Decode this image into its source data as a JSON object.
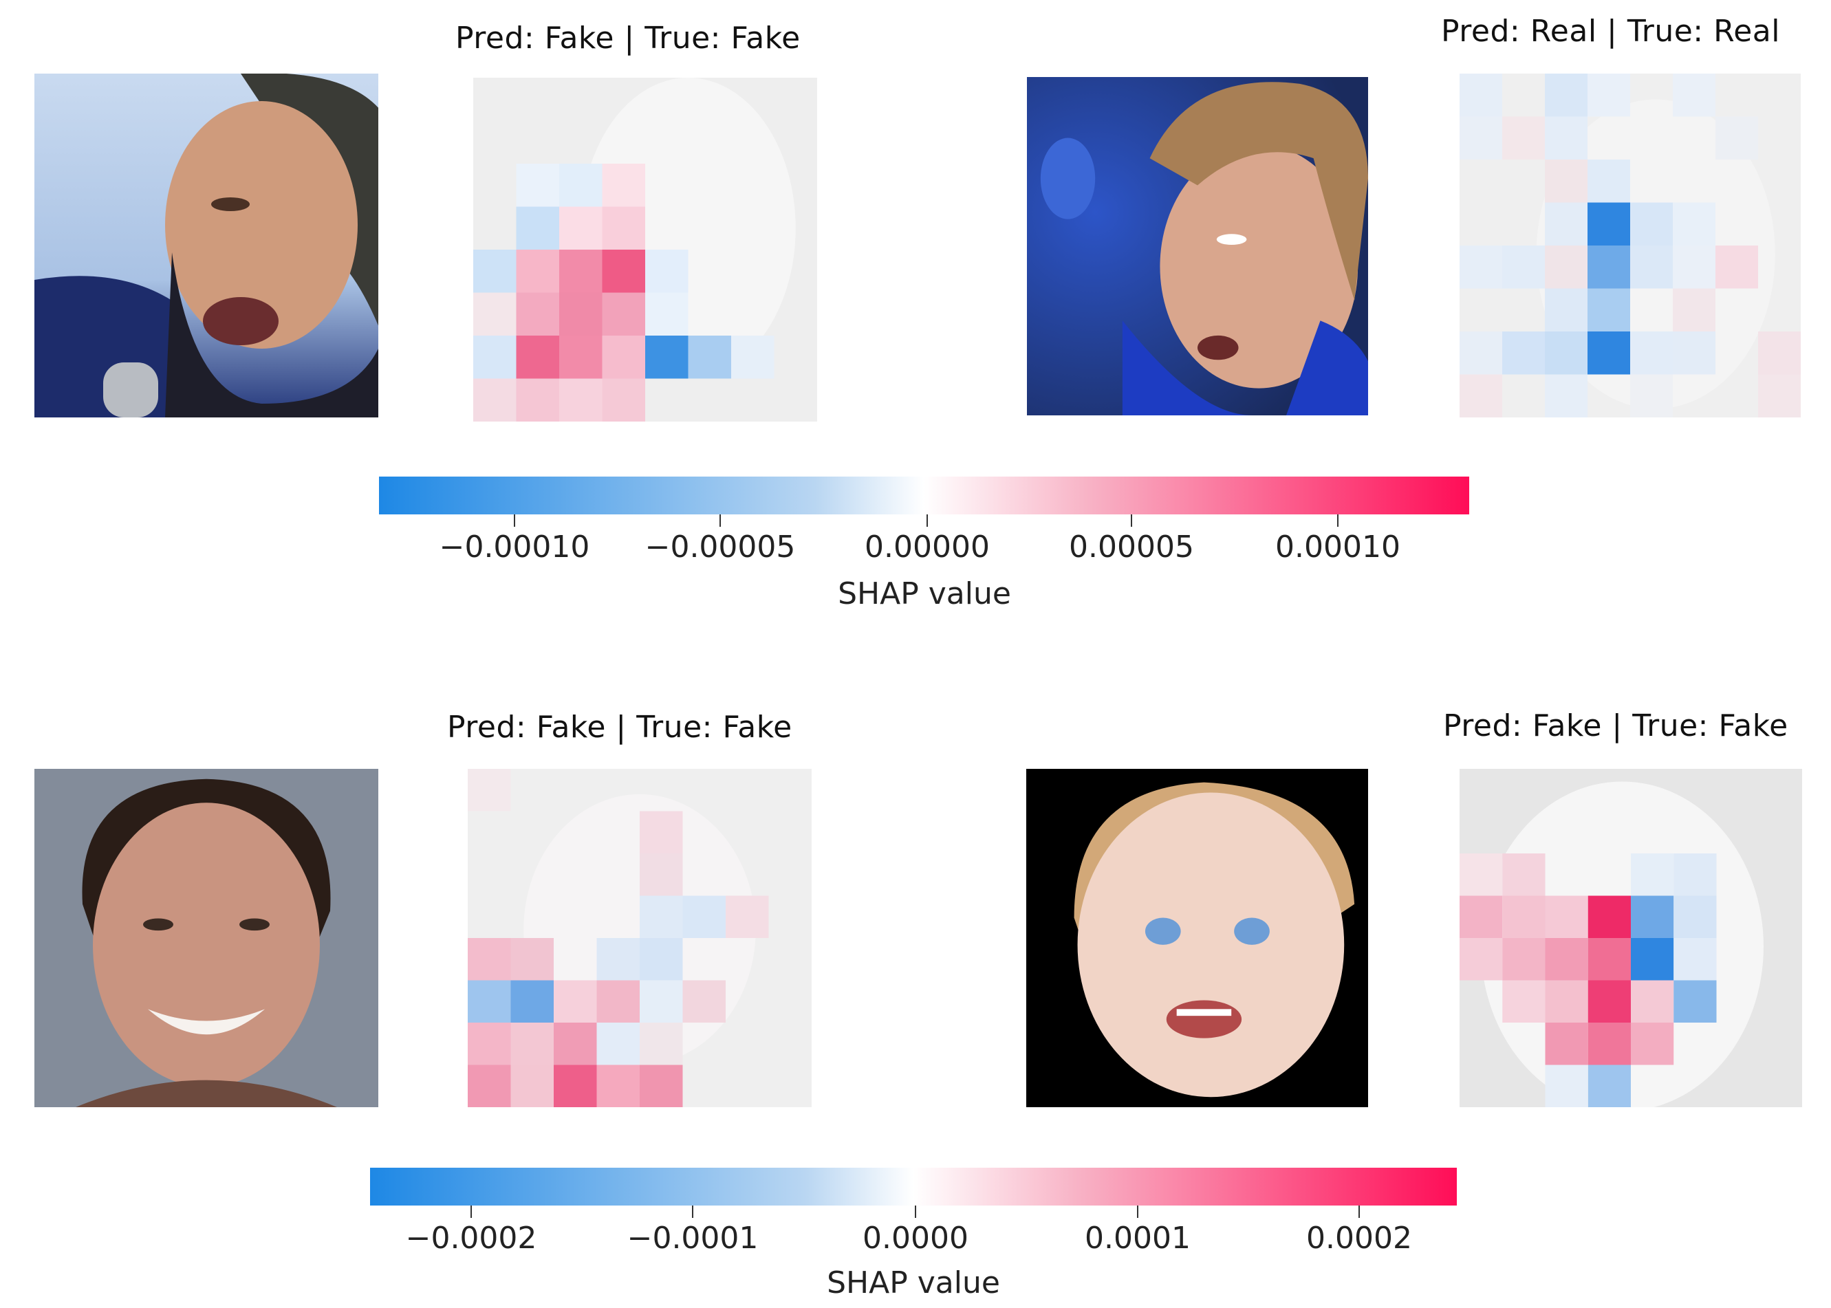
{
  "panels": [
    {
      "title": "Pred: Fake | True: Fake",
      "subject": "man-speaking-into-microphone"
    },
    {
      "title": "Pred: Real | True: Real",
      "subject": "teen-boy-blue-shirt"
    },
    {
      "title": "Pred: Fake | True: Fake",
      "subject": "smiling-young-man"
    },
    {
      "title": "Pred: Fake | True: Fake",
      "subject": "smiling-baby"
    }
  ],
  "colorbars": [
    {
      "ticks": [
        "−0.00010",
        "−0.00005",
        "0.00000",
        "0.00005",
        "0.00010"
      ],
      "label": "SHAP value"
    },
    {
      "ticks": [
        "−0.0002",
        "−0.0001",
        "0.0000",
        "0.0001",
        "0.0002"
      ],
      "label": "SHAP value"
    }
  ],
  "colors": {
    "negative": "#1e88e5",
    "zero": "#ffffff",
    "positive": "#ff0d57"
  }
}
